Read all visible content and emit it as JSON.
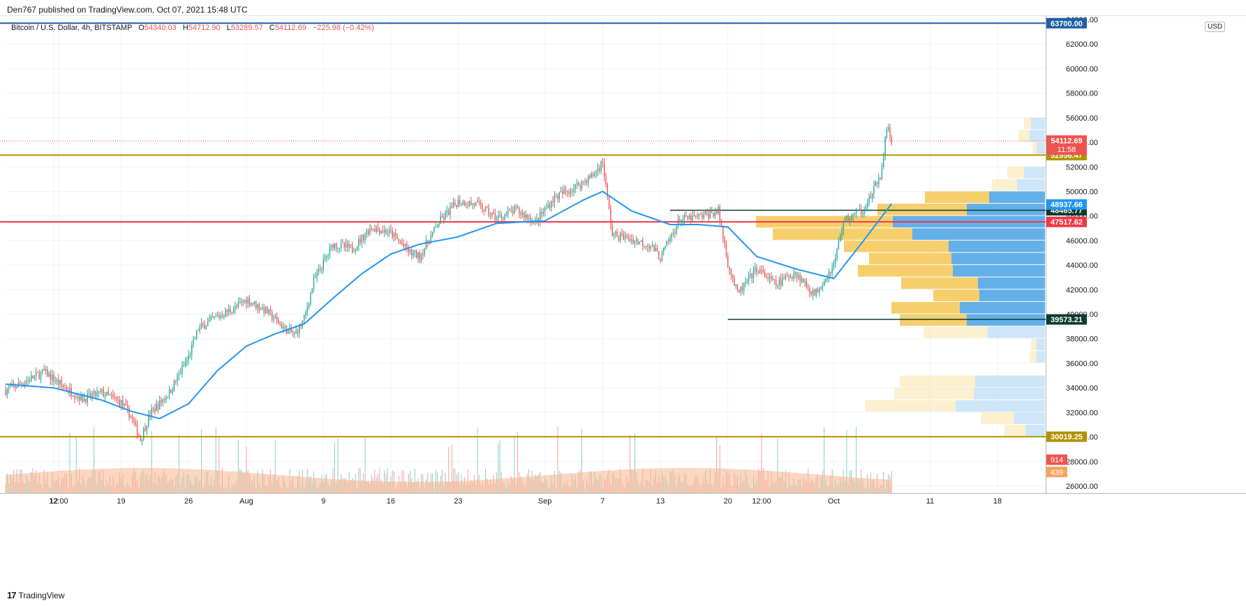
{
  "header": {
    "published": "Den767 published on TradingView.com, Oct 07, 2021 15:48 UTC"
  },
  "legend": {
    "symbol": "Bitcoin / U.S. Dollar, 4h, BITSTAMP",
    "open_label": "O",
    "open": "54340.03",
    "high_label": "H",
    "high": "54712.90",
    "low_label": "L",
    "low": "53289.57",
    "close_label": "C",
    "close": "54112.69",
    "change": "−225.98 (−0.42%)"
  },
  "currency": "USD",
  "footer": {
    "brand": "TradingView",
    "logo": "17"
  },
  "colors": {
    "up": "#26a69a",
    "down": "#ef5350",
    "ma": "#2196f3",
    "gold": "#b39200",
    "red_line": "#f23645",
    "dark_line": "#0d3b2e",
    "vp_blue": "#5bace8",
    "vp_yellow": "#f6cc64",
    "volume_ma": "#f7b78f"
  },
  "chart_data": {
    "type": "candlestick",
    "title": "Bitcoin / U.S. Dollar, 4h, BITSTAMP",
    "y_axis": {
      "range": [
        25000,
        64000
      ],
      "ticks": [
        26000,
        28000,
        30000,
        32000,
        34000,
        36000,
        38000,
        40000,
        42000,
        44000,
        46000,
        48000,
        50000,
        52000,
        54000,
        56000,
        58000,
        60000,
        62000,
        64000
      ],
      "tick_labels": [
        "26000.00",
        "28000.00",
        "30000.00",
        "32000.00",
        "34000.00",
        "36000.00",
        "38000.00",
        "40000.00",
        "42000.00",
        "44000.00",
        "46000.00",
        "48000.00",
        "50000.00",
        "52000.00",
        "54000.00",
        "56000.00",
        "58000.00",
        "60000.00",
        "62000.00",
        "64000.00"
      ]
    },
    "x_axis": {
      "range": [
        "2021-07-07",
        "2021-10-23"
      ],
      "ticks": [
        "2021-07-12T12:00",
        "2021-07-12",
        "2021-07-19",
        "2021-07-26",
        "2021-08-01",
        "2021-08-09",
        "2021-08-16",
        "2021-08-23",
        "2021-09-01",
        "2021-09-07",
        "2021-09-13",
        "2021-09-20",
        "2021-09-23T12:00",
        "2021-10-01",
        "2021-10-11",
        "2021-10-18"
      ],
      "tick_labels": [
        "12:00",
        "12",
        "19",
        "26",
        "Aug",
        "9",
        "16",
        "23",
        "Sep",
        "7",
        "13",
        "20",
        "12:00",
        "Oct",
        "11",
        "18"
      ]
    },
    "price_path": [
      [
        "2021-07-07",
        33800
      ],
      [
        "2021-07-09",
        34500
      ],
      [
        "2021-07-11",
        35300
      ],
      [
        "2021-07-13",
        34100
      ],
      [
        "2021-07-15",
        33100
      ],
      [
        "2021-07-17",
        33600
      ],
      [
        "2021-07-19",
        32800
      ],
      [
        "2021-07-20",
        31700
      ],
      [
        "2021-07-21",
        29800
      ],
      [
        "2021-07-22",
        31900
      ],
      [
        "2021-07-24",
        33600
      ],
      [
        "2021-07-26",
        36500
      ],
      [
        "2021-07-27",
        38800
      ],
      [
        "2021-07-29",
        39800
      ],
      [
        "2021-07-31",
        40600
      ],
      [
        "2021-08-01",
        41200
      ],
      [
        "2021-08-03",
        40300
      ],
      [
        "2021-08-05",
        38800
      ],
      [
        "2021-08-06",
        38300
      ],
      [
        "2021-08-07",
        39600
      ],
      [
        "2021-08-08",
        42700
      ],
      [
        "2021-08-10",
        45700
      ],
      [
        "2021-08-12",
        45300
      ],
      [
        "2021-08-14",
        47100
      ],
      [
        "2021-08-16",
        46600
      ],
      [
        "2021-08-18",
        45000
      ],
      [
        "2021-08-19",
        44700
      ],
      [
        "2021-08-21",
        47500
      ],
      [
        "2021-08-23",
        49200
      ],
      [
        "2021-08-25",
        48900
      ],
      [
        "2021-08-27",
        47800
      ],
      [
        "2021-08-29",
        48500
      ],
      [
        "2021-08-31",
        47500
      ],
      [
        "2021-09-02",
        49500
      ],
      [
        "2021-09-04",
        50300
      ],
      [
        "2021-09-06",
        51300
      ],
      [
        "2021-09-07",
        52400
      ],
      [
        "2021-09-08",
        46500
      ],
      [
        "2021-09-10",
        46100
      ],
      [
        "2021-09-12",
        45600
      ],
      [
        "2021-09-13",
        44600
      ],
      [
        "2021-09-15",
        47700
      ],
      [
        "2021-09-17",
        47900
      ],
      [
        "2021-09-19",
        48400
      ],
      [
        "2021-09-20",
        44200
      ],
      [
        "2021-09-21",
        41600
      ],
      [
        "2021-09-23",
        43700
      ],
      [
        "2021-09-25",
        42400
      ],
      [
        "2021-09-27",
        43400
      ],
      [
        "2021-09-29",
        41600
      ],
      [
        "2021-10-01",
        44000
      ],
      [
        "2021-10-02",
        47600
      ],
      [
        "2021-10-04",
        48500
      ],
      [
        "2021-10-05",
        49800
      ],
      [
        "2021-10-06",
        51700
      ],
      [
        "2021-10-06T12:00",
        55300
      ],
      [
        "2021-10-07",
        54112.69
      ]
    ],
    "series": [
      {
        "name": "",
        "type": "line",
        "color": "#2196f3",
        "points": [
          [
            "2021-07-07",
            34300
          ],
          [
            "2021-07-12",
            34000
          ],
          [
            "2021-07-17",
            33000
          ],
          [
            "2021-07-20",
            32100
          ],
          [
            "2021-07-23",
            31500
          ],
          [
            "2021-07-26",
            32700
          ],
          [
            "2021-07-29",
            35400
          ],
          [
            "2021-08-01",
            37400
          ],
          [
            "2021-08-04",
            38400
          ],
          [
            "2021-08-07",
            39200
          ],
          [
            "2021-08-10",
            41300
          ],
          [
            "2021-08-13",
            43300
          ],
          [
            "2021-08-16",
            44900
          ],
          [
            "2021-08-19",
            45700
          ],
          [
            "2021-08-23",
            46300
          ],
          [
            "2021-08-27",
            47400
          ],
          [
            "2021-09-01",
            47600
          ],
          [
            "2021-09-05",
            49300
          ],
          [
            "2021-09-07",
            50000
          ],
          [
            "2021-09-10",
            48400
          ],
          [
            "2021-09-14",
            47300
          ],
          [
            "2021-09-17",
            47300
          ],
          [
            "2021-09-20",
            47100
          ],
          [
            "2021-09-23",
            44700
          ],
          [
            "2021-09-27",
            43700
          ],
          [
            "2021-10-01",
            42900
          ],
          [
            "2021-10-04",
            45900
          ],
          [
            "2021-10-07",
            49000
          ]
        ]
      }
    ],
    "horizontal_levels": [
      {
        "label": "52956.47",
        "value": 52956.47,
        "color": "#b39200"
      },
      {
        "label": "48465.77",
        "value": 48465.77,
        "color": "#0d3b2e"
      },
      {
        "label": "47517.62",
        "value": 47517.62,
        "color": "#f23645"
      },
      {
        "label": "39573.21",
        "value": 39573.21,
        "color": "#0d3b2e"
      },
      {
        "label": "30019.25",
        "value": 30019.25,
        "color": "#b39200"
      },
      {
        "label": "48937.66",
        "value": 48937.66,
        "color": "#2196f3"
      }
    ],
    "price_labels": [
      {
        "label": "54112.69",
        "sub": "11:58",
        "value": 54112.69,
        "color": "#ef5350"
      },
      {
        "label": "63700.00",
        "value": 63700,
        "color": "#1e5fa8"
      },
      {
        "label": "914",
        "value": 28150,
        "color": "#ef5350"
      },
      {
        "label": "439",
        "value": 27150,
        "color": "#f7a35c"
      }
    ],
    "volume_profile": [
      {
        "price": 55500,
        "blue": 20,
        "yellow": 10,
        "faded": true
      },
      {
        "price": 54500,
        "blue": 22,
        "yellow": 16,
        "faded": true
      },
      {
        "price": 53500,
        "blue": 12,
        "yellow": 6,
        "faded": true
      },
      {
        "price": 51500,
        "blue": 30,
        "yellow": 24,
        "faded": true
      },
      {
        "price": 50500,
        "blue": 40,
        "yellow": 36,
        "faded": true
      },
      {
        "price": 49500,
        "blue": 80,
        "yellow": 92,
        "faded": false
      },
      {
        "price": 48500,
        "blue": 112,
        "yellow": 128,
        "faded": false
      },
      {
        "price": 47500,
        "blue": 218,
        "yellow": 196,
        "faded": false
      },
      {
        "price": 46500,
        "blue": 190,
        "yellow": 200,
        "faded": false
      },
      {
        "price": 45500,
        "blue": 138,
        "yellow": 150,
        "faded": false
      },
      {
        "price": 44500,
        "blue": 134,
        "yellow": 118,
        "faded": false
      },
      {
        "price": 43500,
        "blue": 132,
        "yellow": 136,
        "faded": false
      },
      {
        "price": 42500,
        "blue": 96,
        "yellow": 110,
        "faded": false
      },
      {
        "price": 41500,
        "blue": 94,
        "yellow": 66,
        "faded": false
      },
      {
        "price": 40500,
        "blue": 122,
        "yellow": 98,
        "faded": false
      },
      {
        "price": 39500,
        "blue": 112,
        "yellow": 96,
        "faded": false
      },
      {
        "price": 38500,
        "blue": 82,
        "yellow": 92,
        "faded": true
      },
      {
        "price": 37500,
        "blue": 12,
        "yellow": 8,
        "faded": true
      },
      {
        "price": 36500,
        "blue": 12,
        "yellow": 10,
        "faded": true
      },
      {
        "price": 34500,
        "blue": 100,
        "yellow": 108,
        "faded": true
      },
      {
        "price": 33500,
        "blue": 102,
        "yellow": 114,
        "faded": true
      },
      {
        "price": 32500,
        "blue": 128,
        "yellow": 130,
        "faded": true
      },
      {
        "price": 31500,
        "blue": 44,
        "yellow": 48,
        "faded": true
      },
      {
        "price": 30500,
        "blue": 28,
        "yellow": 30,
        "faded": true
      }
    ],
    "drawn_segments": [
      {
        "from": "2021-09-14",
        "to": "2021-10-23",
        "value": 48465.77,
        "color": "#0d3b2e"
      },
      {
        "from": "2021-09-20",
        "to": "2021-10-23",
        "value": 39573.21,
        "color": "#0d3b2e"
      }
    ],
    "grid": true,
    "volume_pane": true
  }
}
